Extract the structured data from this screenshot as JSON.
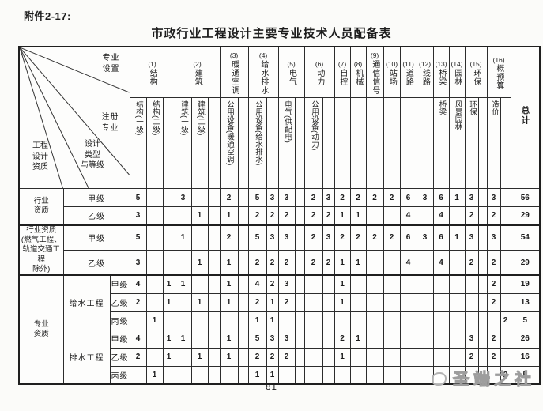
{
  "page": {
    "attachment_label": "附件2-17:",
    "title": "市政行业工程设计主要专业技术人员配备表",
    "page_number": "81",
    "watermark_text": "圣端之社"
  },
  "table": {
    "corner": {
      "top_right": "专业\n设置",
      "middle_right": "注册\n专业",
      "bottom_middle": "设计\n类型\n与等级",
      "bottom_left": "工程\n设计\n资质"
    },
    "total_label": "总计",
    "col_groups": [
      {
        "num": "(1)",
        "label": "结构",
        "subs": [
          "结构(一级)",
          "结构(二级)",
          ""
        ]
      },
      {
        "num": "(2)",
        "label": "建筑",
        "subs": [
          "建筑(一级)",
          "建筑(二级)",
          ""
        ]
      },
      {
        "num": "(3)",
        "label": "暖通空调",
        "subs": [
          "公用设备(暖通空调)",
          ""
        ]
      },
      {
        "num": "(4)",
        "label": "给水排水",
        "subs": [
          "公用设备(给水排水)",
          ""
        ]
      },
      {
        "num": "(5)",
        "label": "电气",
        "subs": [
          "电气(供配电)",
          ""
        ]
      },
      {
        "num": "(6)",
        "label": "动力",
        "subs": [
          "公用设备(动力)",
          ""
        ]
      },
      {
        "num": "(7)",
        "label": "自控",
        "subs": [
          ""
        ]
      },
      {
        "num": "(8)",
        "label": "机械",
        "subs": [
          ""
        ]
      },
      {
        "num": "(9)",
        "label": "通信信号",
        "subs": [
          ""
        ]
      },
      {
        "num": "(10)",
        "label": "站场",
        "subs": [
          ""
        ]
      },
      {
        "num": "(11)",
        "label": "道路",
        "subs": [
          ""
        ]
      },
      {
        "num": "(12)",
        "label": "线路",
        "subs": [
          ""
        ]
      },
      {
        "num": "(13)",
        "label": "桥梁",
        "subs": [
          "桥梁"
        ]
      },
      {
        "num": "(14)",
        "label": "园林",
        "subs": [
          "风景园林"
        ]
      },
      {
        "num": "(15)",
        "label": "环保",
        "subs": [
          "环保",
          ""
        ]
      },
      {
        "num": "(16)",
        "label": "概预算",
        "subs": [
          "造价",
          ""
        ]
      }
    ],
    "rows": [
      {
        "group": "行业\n资质",
        "group_span": 2,
        "grade": "甲级",
        "grade_colspan": 2,
        "values": [
          "5",
          "",
          "",
          "3",
          "",
          "",
          "2",
          "",
          "5",
          "3",
          "3",
          "",
          "2",
          "3",
          "2",
          "2",
          "2",
          "2",
          "6",
          "3",
          "6",
          "1",
          "3",
          "",
          "3",
          ""
        ],
        "total": "56"
      },
      {
        "grade": "乙级",
        "grade_colspan": 2,
        "values": [
          "3",
          "",
          "",
          "",
          "1",
          "",
          "1",
          "",
          "2",
          "2",
          "2",
          "",
          "2",
          "2",
          "1",
          "1",
          "",
          "",
          "4",
          "",
          "4",
          "",
          "2",
          "",
          "2",
          ""
        ],
        "total": "29"
      },
      {
        "group": "行业资质\n(燃气工程、\n轨道交通工程\n除外)",
        "group_span": 2,
        "grade": "甲级",
        "grade_colspan": 2,
        "values": [
          "5",
          "",
          "",
          "1",
          "",
          "",
          "2",
          "",
          "5",
          "3",
          "3",
          "",
          "2",
          "3",
          "2",
          "2",
          "2",
          "2",
          "6",
          "3",
          "6",
          "1",
          "3",
          "",
          "3",
          ""
        ],
        "total": "54"
      },
      {
        "grade": "乙级",
        "grade_colspan": 2,
        "values": [
          "3",
          "",
          "",
          "",
          "1",
          "",
          "1",
          "",
          "2",
          "2",
          "2",
          "",
          "2",
          "2",
          "1",
          "1",
          "",
          "",
          "4",
          "",
          "4",
          "",
          "2",
          "",
          "2",
          ""
        ],
        "total": "29"
      },
      {
        "group": "专业\n资质",
        "group_span": 6,
        "sub": "给水工程",
        "sub_span": 3,
        "grade": "甲级",
        "grade_colspan": 1,
        "values": [
          "4",
          "",
          "1",
          "1",
          "",
          "",
          "1",
          "",
          "4",
          "2",
          "3",
          "",
          "",
          "",
          "1",
          "",
          "",
          "",
          "",
          "",
          "",
          "",
          "",
          "",
          "2",
          ""
        ],
        "total": "19"
      },
      {
        "grade": "乙级",
        "grade_colspan": 1,
        "values": [
          "2",
          "",
          "1",
          "",
          "1",
          "",
          "1",
          "",
          "2",
          "1",
          "2",
          "",
          "",
          "",
          "1",
          "",
          "",
          "",
          "",
          "",
          "",
          "",
          "",
          "",
          "2",
          ""
        ],
        "total": "13"
      },
      {
        "grade": "丙级",
        "grade_colspan": 1,
        "values": [
          "",
          "1",
          "",
          "",
          "",
          "",
          "",
          "",
          "1",
          "1",
          "",
          "",
          "",
          "",
          "",
          "",
          "",
          "",
          "",
          "",
          "",
          "",
          "",
          "",
          "",
          "2"
        ],
        "total": "5"
      },
      {
        "sub": "排水工程",
        "sub_span": 3,
        "grade": "甲级",
        "grade_colspan": 1,
        "values": [
          "4",
          "",
          "1",
          "1",
          "",
          "",
          "1",
          "",
          "5",
          "3",
          "3",
          "",
          "",
          "",
          "2",
          "1",
          "",
          "",
          "",
          "",
          "",
          "",
          "3",
          "",
          "2",
          ""
        ],
        "total": "26"
      },
      {
        "grade": "乙级",
        "grade_colspan": 1,
        "values": [
          "2",
          "",
          "1",
          "",
          "1",
          "",
          "1",
          "",
          "2",
          "2",
          "2",
          "",
          "",
          "",
          "1",
          "",
          "",
          "",
          "",
          "",
          "",
          "",
          "2",
          "",
          "2",
          ""
        ],
        "total": "16"
      },
      {
        "grade": "丙级",
        "grade_colspan": 1,
        "values": [
          "",
          "1",
          "",
          "",
          "",
          "",
          "",
          "",
          "1",
          "1",
          "",
          "",
          "",
          "",
          "",
          "",
          "",
          "",
          "",
          "",
          "",
          "",
          "",
          "",
          "",
          "2"
        ],
        "total": "5"
      }
    ]
  }
}
